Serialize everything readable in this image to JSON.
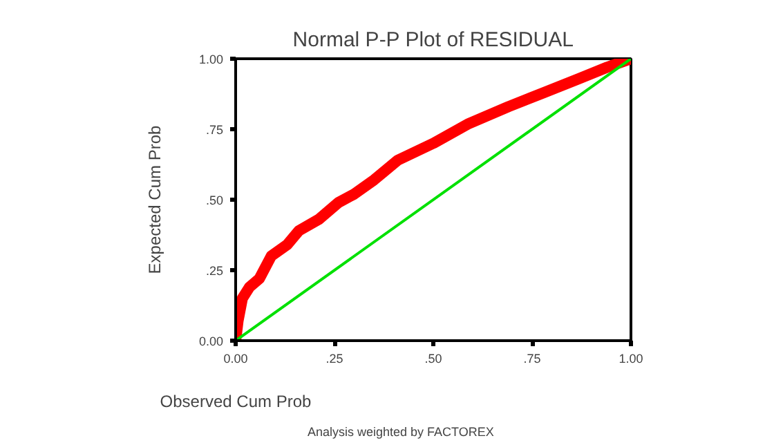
{
  "chart_data": {
    "type": "line",
    "title": "Normal P-P Plot of RESIDUAL",
    "xlabel": "Observed Cum Prob",
    "ylabel": "Expected Cum Prob",
    "annotations": [
      "Analysis weighted by FACTOREX"
    ],
    "xlim": [
      0,
      1
    ],
    "ylim": [
      0,
      1
    ],
    "xticks": [
      {
        "value": 0,
        "label": "0.00"
      },
      {
        "value": 0.25,
        "label": ".25"
      },
      {
        "value": 0.5,
        "label": ".50"
      },
      {
        "value": 0.75,
        "label": ".75"
      },
      {
        "value": 1,
        "label": "1.00"
      }
    ],
    "yticks": [
      {
        "value": 0,
        "label": "0.00"
      },
      {
        "value": 0.25,
        "label": ".25"
      },
      {
        "value": 0.5,
        "label": ".50"
      },
      {
        "value": 0.75,
        "label": ".75"
      },
      {
        "value": 1,
        "label": "1.00"
      }
    ],
    "grid": false,
    "marker": "none",
    "line_style": "solid",
    "series": [
      {
        "color": "#ff0000",
        "x": [
          0,
          0.006,
          0.017,
          0.035,
          0.06,
          0.09,
          0.13,
          0.16,
          0.21,
          0.26,
          0.3,
          0.35,
          0.41,
          0.5,
          0.59,
          0.69,
          0.78,
          0.87,
          0.94,
          1
        ],
        "values": [
          0,
          0.07,
          0.15,
          0.19,
          0.22,
          0.3,
          0.34,
          0.39,
          0.43,
          0.49,
          0.52,
          0.57,
          0.64,
          0.7,
          0.77,
          0.83,
          0.88,
          0.93,
          0.97,
          1
        ]
      },
      {
        "color": "#00e000",
        "x": [
          0,
          1
        ],
        "values": [
          0,
          1
        ]
      }
    ]
  }
}
